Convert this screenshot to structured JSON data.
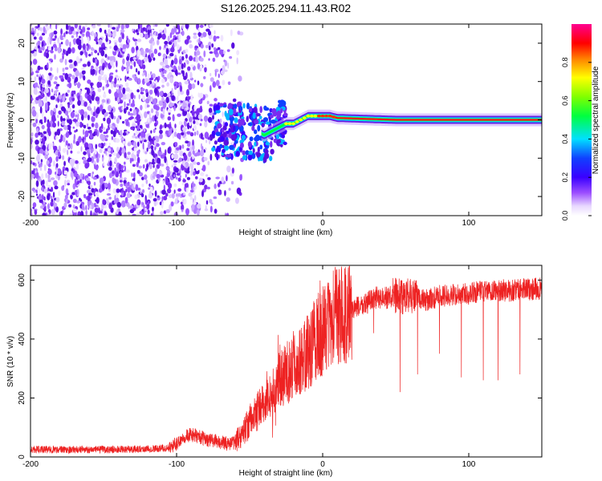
{
  "title": "S126.2025.294.11.43.R02",
  "chart_data": [
    {
      "type": "heatmap",
      "name": "spectrogram",
      "xlabel": "Height of straight line (km)",
      "ylabel": "Frequency (Hz)",
      "xlim": [
        -200,
        150
      ],
      "ylim": [
        -25,
        25
      ],
      "xticks": [
        -200,
        -100,
        0,
        100
      ],
      "xtick_labels": [
        "-200",
        "-100",
        "0",
        "100"
      ],
      "yticks": [
        -20,
        -10,
        0,
        10,
        20
      ],
      "ytick_labels": [
        "-20",
        "-10",
        "0",
        "10",
        "20"
      ],
      "colorbar": {
        "label": "Normalized spectral amplitude",
        "range": [
          0,
          1
        ],
        "ticks": [
          0,
          0.2,
          0.4,
          0.6,
          0.8
        ],
        "tick_labels": [
          "0.0",
          "0.2",
          "0.4",
          "0.6",
          "0.8"
        ],
        "colormap": "rainbow (white-purple-blue-cyan-green-yellow-red-magenta)"
      },
      "carrier_trace": [
        [
          -45,
          -3
        ],
        [
          -40,
          -4
        ],
        [
          -35,
          -3
        ],
        [
          -30,
          -2
        ],
        [
          -25,
          -1
        ],
        [
          -20,
          -1
        ],
        [
          -15,
          0
        ],
        [
          -10,
          1
        ],
        [
          -5,
          1
        ],
        [
          0,
          1
        ],
        [
          5,
          1
        ],
        [
          10,
          0.5
        ],
        [
          50,
          0
        ],
        [
          100,
          0
        ],
        [
          150,
          0
        ]
      ],
      "noise_region_x": [
        -200,
        -65
      ]
    },
    {
      "type": "line",
      "name": "snr",
      "xlabel": "Height of straight line (km)",
      "ylabel": "SNR (10 * v/v)",
      "xlim": [
        -200,
        150
      ],
      "ylim": [
        0,
        650
      ],
      "xticks": [
        -200,
        -100,
        0,
        100
      ],
      "xtick_labels": [
        "-200",
        "-100",
        "0",
        "100"
      ],
      "yticks": [
        0,
        200,
        400,
        600
      ],
      "ytick_labels": [
        "0",
        "200",
        "400",
        "600"
      ],
      "color": "#ee2222",
      "series": [
        {
          "name": "SNR",
          "x": [
            -200,
            -180,
            -160,
            -140,
            -120,
            -105,
            -100,
            -95,
            -90,
            -85,
            -80,
            -75,
            -70,
            -65,
            -60,
            -55,
            -50,
            -45,
            -40,
            -35,
            -30,
            -25,
            -20,
            -15,
            -10,
            -5,
            0,
            5,
            10,
            15,
            20,
            25,
            30,
            35,
            40,
            45,
            50,
            55,
            60,
            65,
            70,
            80,
            90,
            100,
            110,
            120,
            130,
            140,
            150
          ],
          "values": [
            25,
            25,
            25,
            25,
            28,
            30,
            45,
            70,
            75,
            70,
            60,
            55,
            50,
            45,
            50,
            80,
            120,
            150,
            180,
            200,
            260,
            280,
            310,
            330,
            360,
            400,
            430,
            460,
            480,
            490,
            500,
            510,
            520,
            540,
            540,
            540,
            550,
            540,
            550,
            540,
            530,
            545,
            550,
            555,
            560,
            565,
            565,
            570,
            570
          ]
        }
      ],
      "dips": [
        [
          20,
          330
        ],
        [
          35,
          420
        ],
        [
          53,
          220
        ],
        [
          65,
          280
        ],
        [
          80,
          350
        ],
        [
          95,
          270
        ],
        [
          110,
          260
        ],
        [
          120,
          260
        ],
        [
          135,
          280
        ]
      ]
    }
  ]
}
